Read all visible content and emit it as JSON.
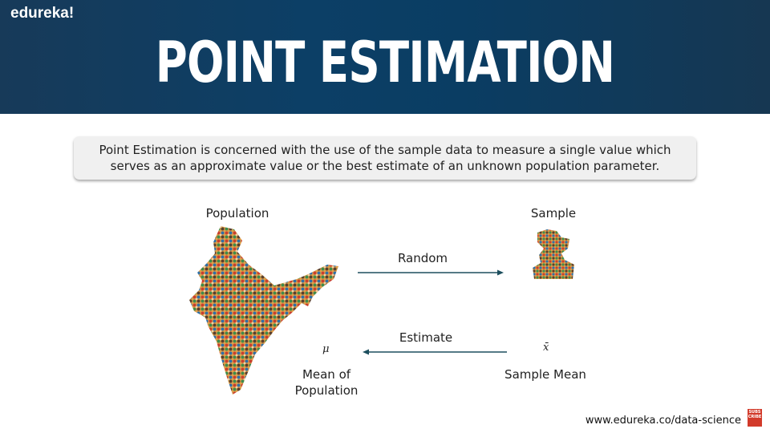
{
  "brand": "edureka!",
  "title": "POINT ESTIMATION",
  "definition": "Point Estimation is concerned with the use of the sample data to measure a single value which serves as an approximate value or the best estimate of an unknown population parameter.",
  "diagram": {
    "population_label": "Population",
    "sample_label": "Sample",
    "random_label": "Random",
    "estimate_label": "Estimate",
    "mu_symbol": "μ",
    "xbar_symbol": "x̄",
    "mean_population_line1": "Mean of",
    "mean_population_line2": "Population",
    "sample_mean_label": "Sample Mean"
  },
  "footer_url": "www.edureka.co/data-science",
  "subscribe_badge": "SUBS CRIBE",
  "colors": {
    "header": "#0c3f66",
    "arrow": "#1d4f5e"
  }
}
